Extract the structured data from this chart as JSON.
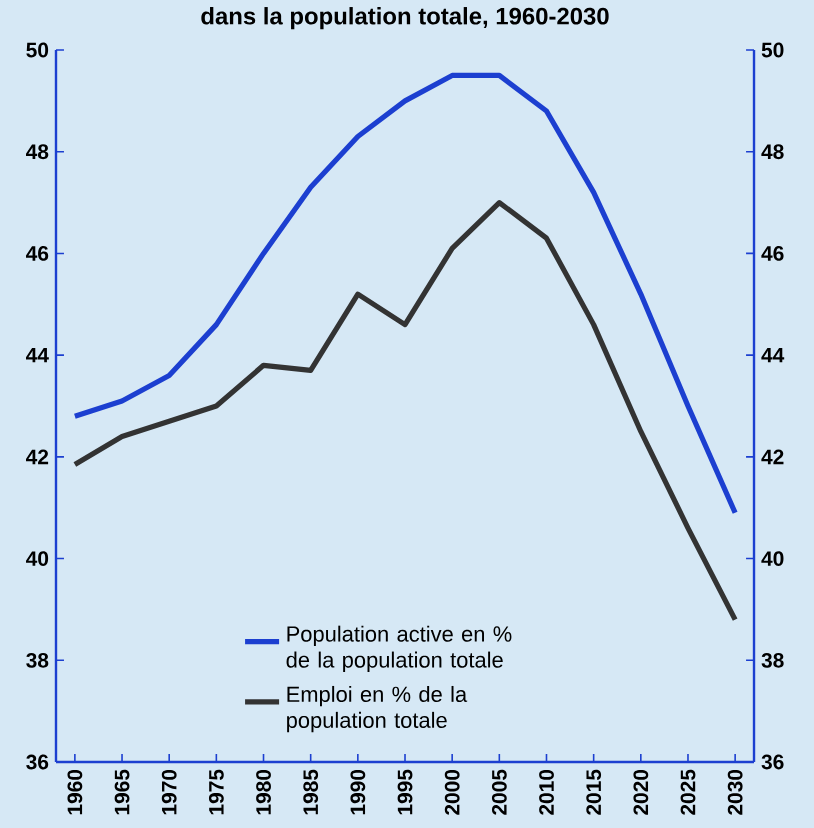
{
  "chart_data": {
    "type": "line",
    "title": "dans la population totale, 1960-2030",
    "x": [
      1960,
      1965,
      1970,
      1975,
      1980,
      1985,
      1990,
      1995,
      2000,
      2005,
      2010,
      2015,
      2020,
      2025,
      2030
    ],
    "series": [
      {
        "name": "Population active en % de la population totale",
        "color": "#1c3fd0",
        "values": [
          42.8,
          43.1,
          43.6,
          44.6,
          46.0,
          47.3,
          48.3,
          49.0,
          49.5,
          49.5,
          48.8,
          47.2,
          45.2,
          43.0,
          40.9
        ]
      },
      {
        "name": "Emploi en % de la population totale",
        "color": "#333333",
        "values": [
          41.85,
          42.4,
          42.7,
          43.0,
          43.8,
          43.7,
          45.2,
          44.6,
          46.1,
          47.0,
          46.3,
          44.6,
          42.5,
          40.6,
          38.8
        ]
      }
    ],
    "xlim": [
      1958,
      2032
    ],
    "xticks": [
      1960,
      1965,
      1970,
      1975,
      1980,
      1985,
      1990,
      1995,
      2000,
      2005,
      2010,
      2015,
      2020,
      2025,
      2030
    ],
    "ylim": [
      36,
      50
    ],
    "yticks": [
      36,
      38,
      40,
      42,
      44,
      46,
      48,
      50
    ],
    "y2lim": [
      36,
      50
    ],
    "y2ticks": [
      36,
      38,
      40,
      42,
      44,
      46,
      48,
      50
    ],
    "legend": "bottom",
    "grid": false,
    "marker": "none",
    "line_style": "solid"
  }
}
